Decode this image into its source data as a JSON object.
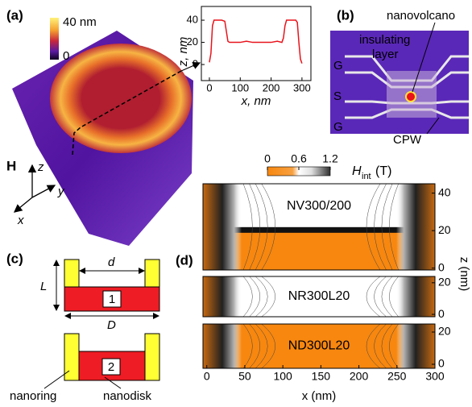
{
  "panels": {
    "a": "(a)",
    "b": "(b)",
    "c": "(c)",
    "d": "(d)"
  },
  "panel_a": {
    "colorbar_max": "40 nm",
    "colorbar_min": "0",
    "field": "H",
    "axis_z": "z",
    "axis_y": "y",
    "axis_x": "x"
  },
  "panel_b": {
    "nanovolcano": "nanovolcano",
    "insulating": "insulating",
    "layer": "layer",
    "ground_top": "G",
    "signal": "S",
    "ground_bottom": "G",
    "cpw": "CPW"
  },
  "panel_c": {
    "d": "d",
    "L": "L",
    "D": "D",
    "one": "1",
    "two": "2",
    "nanoring": "nanoring",
    "nanodisk": "nanodisk"
  },
  "chart_data": [
    {
      "type": "line",
      "xlabel": "x, nm",
      "ylabel": "z, nm",
      "x": [
        0,
        5,
        10,
        15,
        20,
        30,
        40,
        50,
        55,
        60,
        65,
        80,
        100,
        120,
        140,
        160,
        180,
        200,
        220,
        235,
        240,
        245,
        250,
        260,
        270,
        280,
        285,
        290,
        295,
        300
      ],
      "series": [
        {
          "color": "#e8131b",
          "values": [
            2,
            10,
            35,
            40,
            40,
            40,
            40,
            39,
            30,
            21,
            20,
            20,
            20,
            21,
            20,
            20,
            20,
            20,
            21,
            20,
            24,
            35,
            40,
            40,
            40,
            40,
            38,
            20,
            5,
            1
          ]
        }
      ],
      "xlim": [
        -26,
        329
      ],
      "ylim": [
        -14.5,
        52.4
      ],
      "xticks": [
        0,
        100,
        200,
        300
      ],
      "yticks": [
        0,
        20,
        40
      ]
    },
    {
      "type": "contour",
      "xlabel": "x (nm)",
      "ylabel": "z (nm)",
      "xlim": [
        -5,
        300
      ],
      "xticks": [
        0,
        50,
        100,
        150,
        200,
        250,
        300
      ],
      "colorbar": {
        "symbol": "H",
        "subscript": "int",
        "unit": "(T)",
        "lim": [
          0,
          1.2
        ],
        "ticks": [
          0,
          0.6,
          1.2
        ]
      },
      "maps": [
        {
          "name": "NV300/200",
          "ylim": [
            -1,
            45
          ],
          "yticks": [
            0,
            20,
            40
          ]
        },
        {
          "name": "NR300L20",
          "ylim": [
            -1.5,
            24
          ],
          "yticks": [
            0,
            20
          ]
        },
        {
          "name": "ND300L20",
          "ylim": [
            -2.5,
            25
          ],
          "yticks": [
            0,
            20
          ]
        }
      ]
    }
  ]
}
